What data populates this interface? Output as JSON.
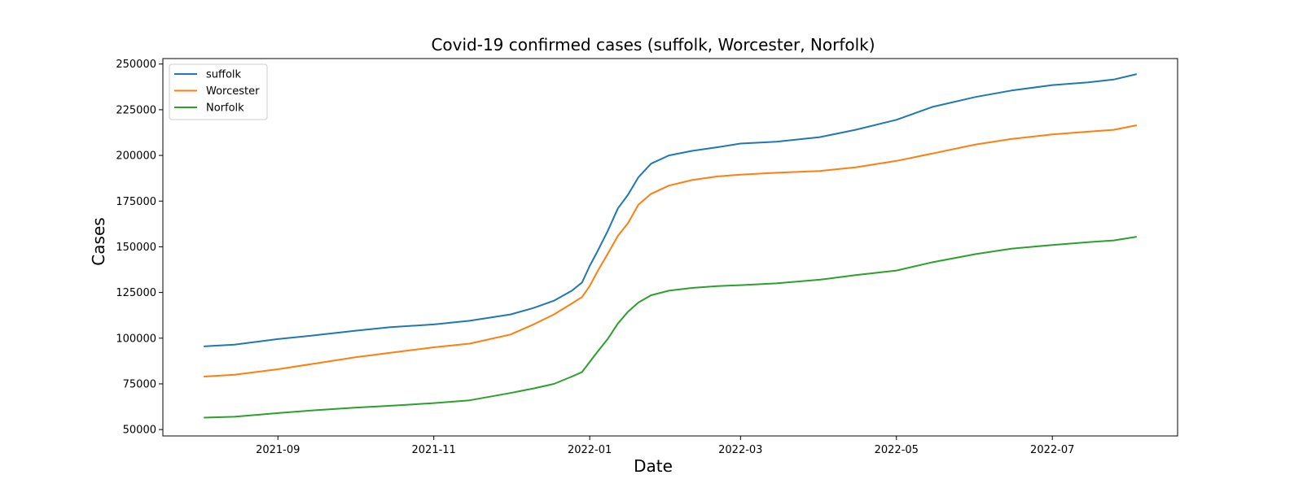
{
  "chart_data": {
    "type": "line",
    "title": "Covid-19 confirmed cases (suffolk, Worcester, Norfolk)",
    "xlabel": "Date",
    "ylabel": "Cases",
    "xlim": [
      "2021-07-18",
      "2022-08-19"
    ],
    "ylim": [
      46500,
      253000
    ],
    "x_ticks": [
      "2021-09",
      "2021-11",
      "2022-01",
      "2022-03",
      "2022-05",
      "2022-07"
    ],
    "x_tick_dates": [
      "2021-09-01",
      "2021-11-01",
      "2022-01-01",
      "2022-03-01",
      "2022-05-01",
      "2022-07-01"
    ],
    "y_ticks": [
      50000,
      75000,
      100000,
      125000,
      150000,
      175000,
      200000,
      225000,
      250000
    ],
    "y_tick_labels": [
      "50000",
      "75000",
      "100000",
      "125000",
      "150000",
      "175000",
      "200000",
      "225000",
      "250000"
    ],
    "grid": false,
    "legend_position": "top-left",
    "x": [
      "2021-08-03",
      "2021-08-15",
      "2021-09-01",
      "2021-09-15",
      "2021-10-01",
      "2021-10-15",
      "2021-11-01",
      "2021-11-15",
      "2021-12-01",
      "2021-12-10",
      "2021-12-18",
      "2021-12-25",
      "2021-12-29",
      "2022-01-01",
      "2022-01-04",
      "2022-01-08",
      "2022-01-12",
      "2022-01-16",
      "2022-01-20",
      "2022-01-25",
      "2022-02-01",
      "2022-02-10",
      "2022-02-20",
      "2022-03-01",
      "2022-03-15",
      "2022-04-01",
      "2022-04-15",
      "2022-05-01",
      "2022-05-15",
      "2022-06-01",
      "2022-06-15",
      "2022-07-01",
      "2022-07-15",
      "2022-07-25",
      "2022-08-03"
    ],
    "series": [
      {
        "name": "suffolk",
        "color": "#1f77b4",
        "values": [
          95500,
          96500,
          99500,
          101500,
          104000,
          106000,
          107500,
          109500,
          113000,
          116500,
          120500,
          126000,
          130500,
          139500,
          147500,
          158500,
          171000,
          178500,
          188000,
          195500,
          200000,
          202500,
          204500,
          206500,
          207500,
          210000,
          214000,
          219500,
          226500,
          232000,
          235500,
          238500,
          240000,
          241500,
          244500
        ]
      },
      {
        "name": "Worcester",
        "color": "#ff7f0e",
        "values": [
          79000,
          80000,
          83000,
          86000,
          89500,
          92000,
          95000,
          97000,
          102000,
          107500,
          113000,
          119000,
          122500,
          128500,
          136500,
          146000,
          156000,
          163000,
          173000,
          179000,
          183500,
          186500,
          188500,
          189500,
          190500,
          191500,
          193500,
          197000,
          201000,
          206000,
          209000,
          211500,
          213000,
          214000,
          216500
        ]
      },
      {
        "name": "Norfolk",
        "color": "#2ca02c",
        "values": [
          56500,
          57000,
          59000,
          60500,
          62000,
          63000,
          64500,
          66000,
          70000,
          72500,
          75000,
          79000,
          81500,
          87000,
          92500,
          99500,
          108000,
          114500,
          119500,
          123500,
          126000,
          127500,
          128500,
          129000,
          130000,
          132000,
          134500,
          137000,
          141500,
          146000,
          149000,
          151000,
          152500,
          153500,
          155500
        ]
      }
    ]
  }
}
